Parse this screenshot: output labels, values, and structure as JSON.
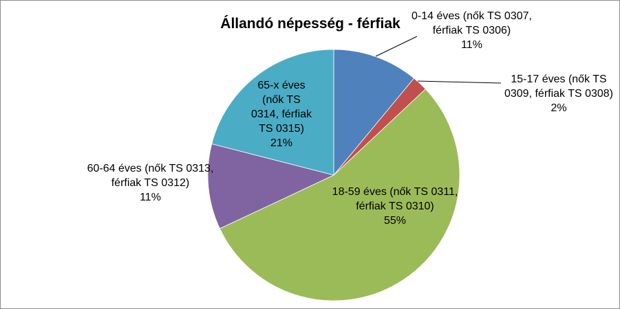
{
  "chart_data": {
    "type": "pie",
    "title": "Állandó népesség - férfiak",
    "slices": [
      {
        "label": "0-14 éves (nők TS 0307, férfiak TS 0306)\n11%",
        "value": 11,
        "color": "#4f81bd"
      },
      {
        "label": "15-17 éves (nők TS 0309, férfiak TS 0308)\n2%",
        "value": 2,
        "color": "#c0504d"
      },
      {
        "label": "18-59 éves (nők TS 0311, férfiak TS 0310)\n55%",
        "value": 55,
        "color": "#9bbb59"
      },
      {
        "label": "60-64 éves (nők TS 0313, férfiak TS 0312)\n11%",
        "value": 11,
        "color": "#8064a2"
      },
      {
        "label": "65-x éves (nők TS 0314, férfiak TS 0315)\n21%",
        "value": 21,
        "color": "#4bacc6"
      }
    ]
  }
}
